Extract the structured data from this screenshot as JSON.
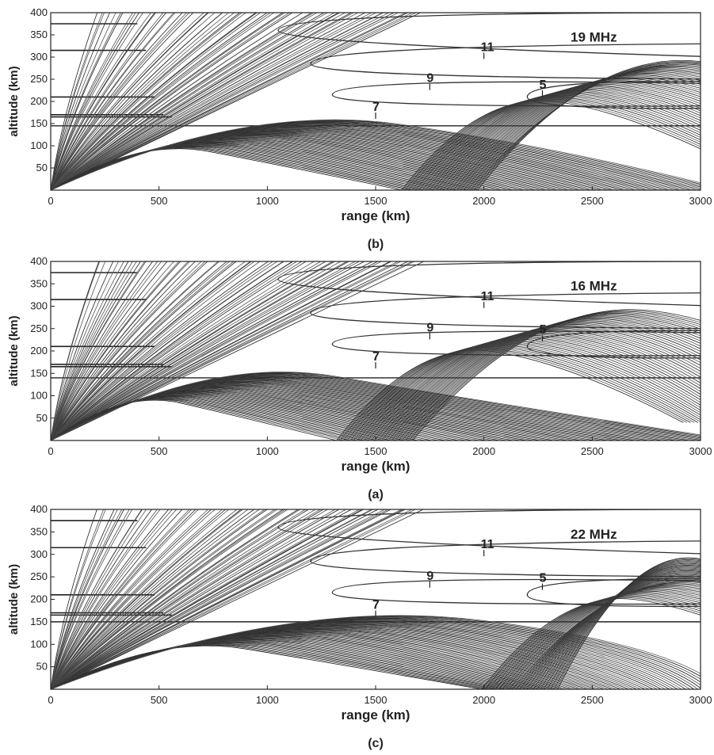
{
  "chart_data": [
    {
      "type": "line",
      "panel_label": "(b)",
      "frequency_label": "19 MHz",
      "xlabel": "range (km)",
      "ylabel": "altitude (km)",
      "xlim": [
        0,
        3000
      ],
      "ylim": [
        0,
        400
      ],
      "x_ticks": [
        "0",
        "500",
        "1000",
        "1500",
        "2000",
        "2500",
        "3000"
      ],
      "y_ticks": [
        "50",
        "100",
        "150",
        "200",
        "250",
        "300",
        "350",
        "400"
      ],
      "plasma_frequency_contours": [
        {
          "label": "11",
          "x": 2000,
          "y": 310
        },
        {
          "label": "9",
          "x": 1750,
          "y": 240
        },
        {
          "label": "7",
          "x": 1500,
          "y": 175
        },
        {
          "label": "5",
          "x": 2270,
          "y": 225
        }
      ],
      "skip_distance_km": 1620,
      "reflection_altitude_km": 145
    },
    {
      "type": "line",
      "panel_label": "(a)",
      "frequency_label": "16 MHz",
      "xlabel": "range (km)",
      "ylabel": "altitude (km)",
      "xlim": [
        0,
        3000
      ],
      "ylim": [
        0,
        400
      ],
      "x_ticks": [
        "0",
        "500",
        "1000",
        "1500",
        "2000",
        "2500",
        "3000"
      ],
      "y_ticks": [
        "50",
        "100",
        "150",
        "200",
        "250",
        "300",
        "350",
        "400"
      ],
      "plasma_frequency_contours": [
        {
          "label": "11",
          "x": 2000,
          "y": 310
        },
        {
          "label": "9",
          "x": 1750,
          "y": 240
        },
        {
          "label": "7",
          "x": 1500,
          "y": 175
        },
        {
          "label": "5",
          "x": 2270,
          "y": 235
        }
      ],
      "skip_distance_km": 1320,
      "reflection_altitude_km": 140
    },
    {
      "type": "line",
      "panel_label": "(c)",
      "frequency_label": "22 MHz",
      "xlabel": "range (km)",
      "ylabel": "altitude (km)",
      "xlim": [
        0,
        3000
      ],
      "ylim": [
        0,
        400
      ],
      "x_ticks": [
        "0",
        "500",
        "1000",
        "1500",
        "2000",
        "2500",
        "3000"
      ],
      "y_ticks": [
        "50",
        "100",
        "150",
        "200",
        "250",
        "300",
        "350",
        "400"
      ],
      "plasma_frequency_contours": [
        {
          "label": "11",
          "x": 2000,
          "y": 310
        },
        {
          "label": "9",
          "x": 1750,
          "y": 240
        },
        {
          "label": "7",
          "x": 1500,
          "y": 175
        },
        {
          "label": "5",
          "x": 2270,
          "y": 235
        }
      ],
      "skip_distance_km": 1990,
      "reflection_altitude_km": 150
    }
  ]
}
